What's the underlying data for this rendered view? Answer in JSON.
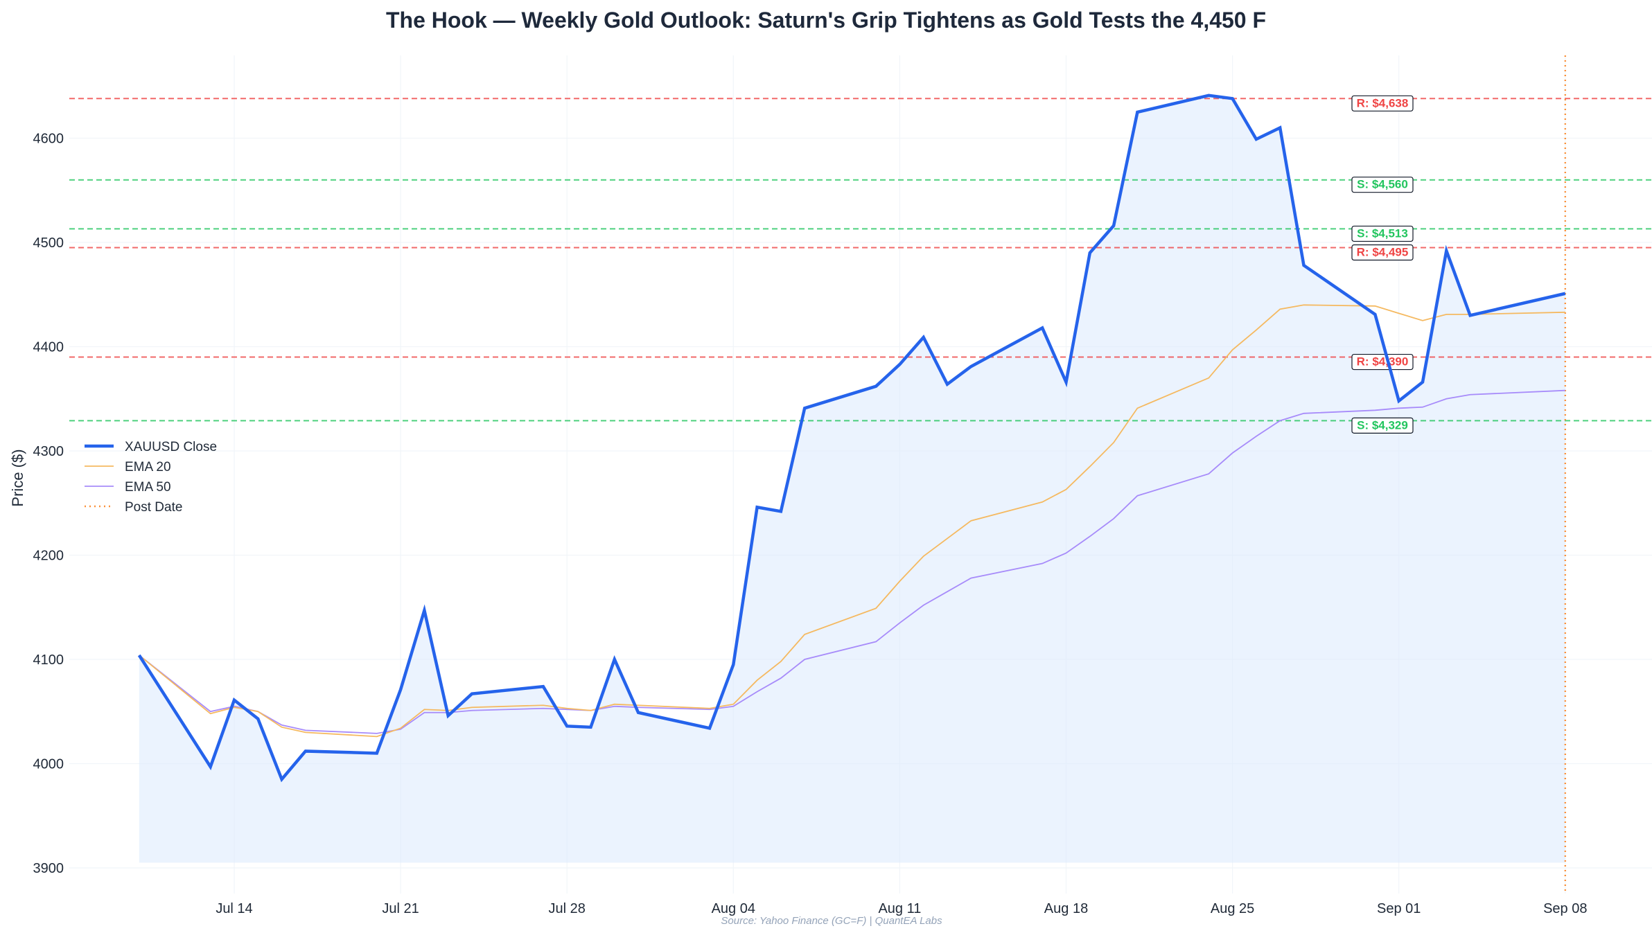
{
  "chart_data": {
    "type": "line",
    "title": "The Hook — Weekly Gold Outlook: Saturn's Grip Tightens as Gold Tests the 4,450 F",
    "ylabel": "Price ($)",
    "xlabel": "",
    "ylim": [
      3875,
      4680
    ],
    "grid": true,
    "legend_placement": "center-left",
    "source": "Source: Yahoo Finance (GC=F) | QuantEA Labs",
    "x_ticks": [
      "Jul 14",
      "Jul 21",
      "Jul 28",
      "Aug 04",
      "Aug 11",
      "Aug 18",
      "Aug 25",
      "Sep 01",
      "Sep 08"
    ],
    "y_ticks": [
      3900,
      4000,
      4100,
      4200,
      4300,
      4400,
      4500,
      4600
    ],
    "series": [
      {
        "name": "XAUUSD Close",
        "color": "#2563eb",
        "points": [
          [
            "2025-07-10",
            4104
          ],
          [
            "2025-07-13",
            3997
          ],
          [
            "2025-07-14",
            4061
          ],
          [
            "2025-07-15",
            4043
          ],
          [
            "2025-07-16",
            3985
          ],
          [
            "2025-07-17",
            4012
          ],
          [
            "2025-07-20",
            4010
          ],
          [
            "2025-07-21",
            4071
          ],
          [
            "2025-07-22",
            4147
          ],
          [
            "2025-07-23",
            4046
          ],
          [
            "2025-07-24",
            4067
          ],
          [
            "2025-07-27",
            4074
          ],
          [
            "2025-07-28",
            4036
          ],
          [
            "2025-07-29",
            4035
          ],
          [
            "2025-07-30",
            4100
          ],
          [
            "2025-07-31",
            4049
          ],
          [
            "2025-08-03",
            4034
          ],
          [
            "2025-08-04",
            4095
          ],
          [
            "2025-08-05",
            4246
          ],
          [
            "2025-08-06",
            4242
          ],
          [
            "2025-08-07",
            4341
          ],
          [
            "2025-08-10",
            4362
          ],
          [
            "2025-08-11",
            4383
          ],
          [
            "2025-08-12",
            4409
          ],
          [
            "2025-08-13",
            4364
          ],
          [
            "2025-08-14",
            4381
          ],
          [
            "2025-08-17",
            4418
          ],
          [
            "2025-08-18",
            4366
          ],
          [
            "2025-08-19",
            4490
          ],
          [
            "2025-08-20",
            4516
          ],
          [
            "2025-08-21",
            4625
          ],
          [
            "2025-08-24",
            4641
          ],
          [
            "2025-08-25",
            4638
          ],
          [
            "2025-08-26",
            4599
          ],
          [
            "2025-08-27",
            4610
          ],
          [
            "2025-08-28",
            4478
          ],
          [
            "2025-08-31",
            4431
          ],
          [
            "2025-09-01",
            4348
          ],
          [
            "2025-09-02",
            4366
          ],
          [
            "2025-09-03",
            4492
          ],
          [
            "2025-09-04",
            4430
          ],
          [
            "2025-09-08",
            4451
          ]
        ]
      },
      {
        "name": "EMA 20",
        "color": "#f5b960",
        "values": [
          4104,
          4048,
          4054,
          4050,
          4035,
          4030,
          4026,
          4034,
          4052,
          4051,
          4054,
          4056,
          4053,
          4051,
          4057,
          4056,
          4053,
          4057,
          4080,
          4098,
          4124,
          4149,
          4175,
          4199,
          4216,
          4233,
          4251,
          4263,
          4285,
          4308,
          4341,
          4370,
          4397,
          4416,
          4436,
          4440,
          4439,
          4432,
          4425,
          4431,
          4431,
          4433
        ]
      },
      {
        "name": "EMA 50",
        "color": "#a78bfa",
        "values": [
          4104,
          4050,
          4055,
          4050,
          4037,
          4032,
          4029,
          4033,
          4049,
          4049,
          4051,
          4053,
          4052,
          4051,
          4055,
          4054,
          4052,
          4055,
          4069,
          4082,
          4100,
          4117,
          4135,
          4152,
          4165,
          4178,
          4192,
          4202,
          4218,
          4235,
          4257,
          4278,
          4298,
          4314,
          4329,
          4336,
          4339,
          4341,
          4342,
          4350,
          4354,
          4358
        ]
      }
    ],
    "levels": [
      {
        "label": "R: $4,638",
        "value": 4638,
        "type": "resistance"
      },
      {
        "label": "S: $4,560",
        "value": 4560,
        "type": "support"
      },
      {
        "label": "S: $4,513",
        "value": 4513,
        "type": "support"
      },
      {
        "label": "R: $4,495",
        "value": 4495,
        "type": "resistance"
      },
      {
        "label": "R: $4,390",
        "value": 4390,
        "type": "resistance"
      },
      {
        "label": "S: $4,329",
        "value": 4329,
        "type": "support"
      }
    ],
    "post_date": {
      "name": "Post Date",
      "x": "2025-09-08",
      "color": "#fb923c"
    },
    "colors": {
      "support": "#22c55e",
      "resistance": "#ef4444",
      "fill": "#dbeafe"
    }
  }
}
